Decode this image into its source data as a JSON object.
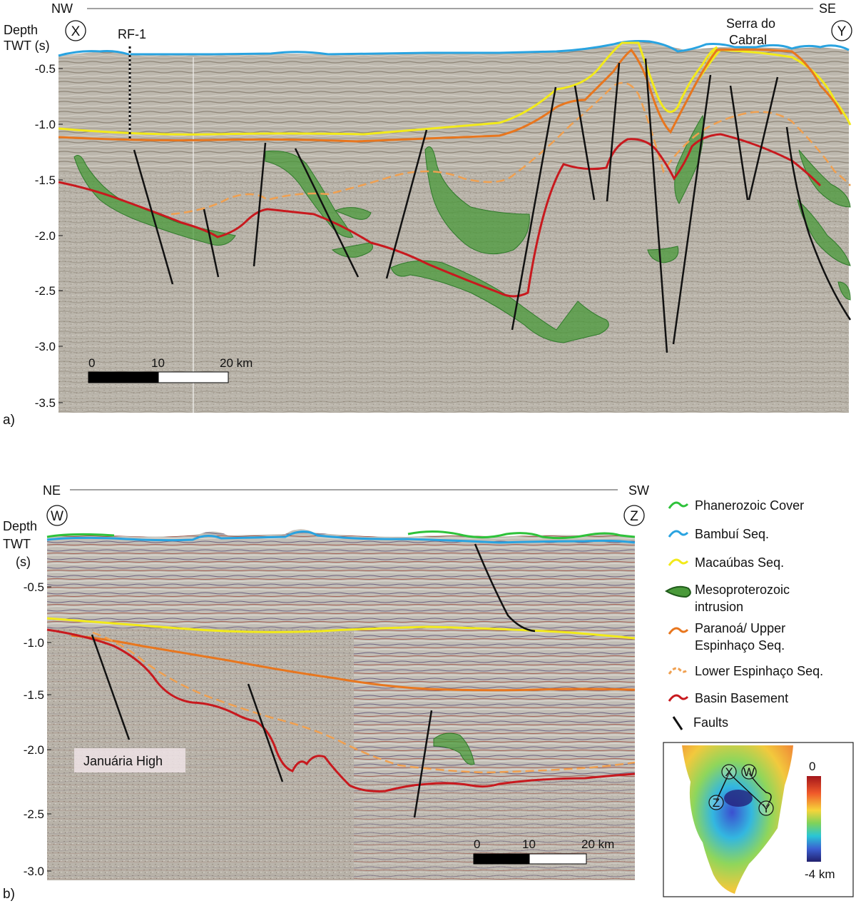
{
  "panel_a": {
    "label": "a)",
    "direction_left": "NW",
    "direction_right": "SE",
    "end_left": "X",
    "end_right": "Y",
    "axis_title_line1": "Depth",
    "axis_title_line2": "TWT (s)",
    "y_ticks": [
      "-0.5",
      "-1.0",
      "-1.5",
      "-2.0",
      "-2.5",
      "-3.0",
      "-3.5"
    ],
    "well_label": "RF-1",
    "feature_label_line1": "Serra do",
    "feature_label_line2": "Cabral",
    "scale_labels": [
      "0",
      "10",
      "20 km"
    ]
  },
  "panel_b": {
    "label": "b)",
    "direction_left": "NE",
    "direction_right": "SW",
    "end_left": "W",
    "end_right": "Z",
    "axis_title_line1": "Depth",
    "axis_title_line2": "TWT",
    "axis_title_line3": "(s)",
    "y_ticks": [
      "-0.5",
      "-1.0",
      "-1.5",
      "-2.0",
      "-2.5",
      "-3.0"
    ],
    "feature_label": "Januária High",
    "scale_labels": [
      "0",
      "10",
      "20 km"
    ]
  },
  "legend": {
    "items": [
      {
        "text": "Phanerozoic Cover",
        "color": "#2ec23a",
        "symbol": "line"
      },
      {
        "text": "Bambuí Seq.",
        "color": "#29a3e0",
        "symbol": "line"
      },
      {
        "text": "Macaúbas Seq.",
        "color": "#f2ea1a",
        "symbol": "line"
      },
      {
        "text": "Mesoproterozoic",
        "text2": "intrusion",
        "color": "#4a9a3a",
        "symbol": "blob"
      },
      {
        "text": "Paranoá/ Upper",
        "text2": "Espinhaço Seq.",
        "color": "#e8761e",
        "symbol": "line"
      },
      {
        "text": "Lower Espinhaço Seq.",
        "color": "#f0a050",
        "symbol": "dashed"
      },
      {
        "text": "Basin Basement",
        "color": "#c8191e",
        "symbol": "line"
      },
      {
        "text": "Faults",
        "color": "#111111",
        "symbol": "fault"
      }
    ]
  },
  "inset_map": {
    "labels": [
      "X",
      "W",
      "Z",
      "Y"
    ],
    "colorbar_top": "0",
    "colorbar_bottom": "-4 km"
  },
  "colors": {
    "seismic_bg": "#b9b4ab",
    "bambui": "#29a3e0",
    "macaubas": "#f2ea1a",
    "paranoa": "#e8761e",
    "lower_espinhaco": "#f0a050",
    "basement": "#c8191e",
    "intrusion": "#4a9a3a",
    "phanerozoic": "#2ec23a"
  }
}
